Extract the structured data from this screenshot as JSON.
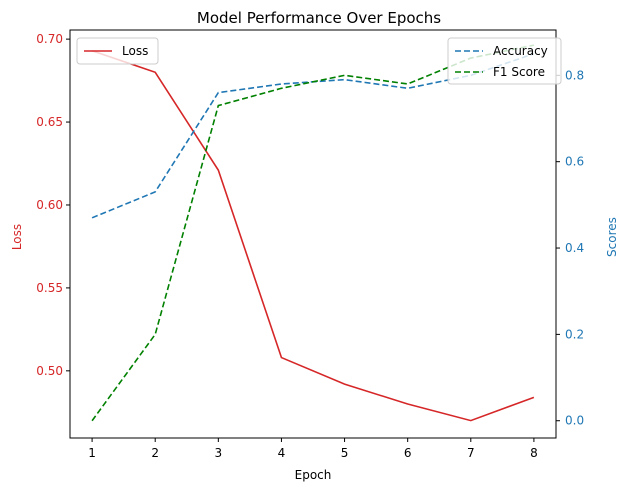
{
  "chart_data": {
    "type": "line",
    "title": "Model Performance Over Epochs",
    "xlabel": "Epoch",
    "ylabel_left": "Loss",
    "ylabel_right": "Scores",
    "x": [
      1,
      2,
      3,
      4,
      5,
      6,
      7,
      8
    ],
    "x_ticks": [
      "1",
      "2",
      "3",
      "4",
      "5",
      "6",
      "7",
      "8"
    ],
    "xlim": [
      0.65,
      8.35
    ],
    "ylim_left": [
      0.4595,
      0.7055
    ],
    "ylim_right": [
      -0.04,
      0.905
    ],
    "yticks_left": [
      "0.50",
      "0.55",
      "0.60",
      "0.65",
      "0.70"
    ],
    "yticks_right": [
      "0.0",
      "0.2",
      "0.4",
      "0.6",
      "0.8"
    ],
    "grid": false,
    "series": [
      {
        "name": "Loss",
        "axis": "left",
        "style": "solid",
        "color": "#d62728",
        "values": [
          0.693,
          0.68,
          0.621,
          0.508,
          0.492,
          0.48,
          0.47,
          0.484
        ]
      },
      {
        "name": "Accuracy",
        "axis": "right",
        "style": "dashed",
        "color": "#1f77b4",
        "values": [
          0.47,
          0.53,
          0.76,
          0.78,
          0.79,
          0.77,
          0.8,
          0.85
        ]
      },
      {
        "name": "F1 Score",
        "axis": "right",
        "style": "dashed",
        "color": "#008000",
        "values": [
          0.0,
          0.2,
          0.73,
          0.77,
          0.8,
          0.78,
          0.84,
          0.87
        ]
      }
    ],
    "legend_left": {
      "placement": "top-left",
      "entries": [
        "Loss"
      ]
    },
    "legend_right": {
      "placement": "top-right",
      "entries": [
        "Accuracy",
        "F1 Score"
      ]
    },
    "colors": {
      "left_axis": "#d62728",
      "right_axis": "#1f77b4",
      "axis_frame": "#000000"
    }
  }
}
